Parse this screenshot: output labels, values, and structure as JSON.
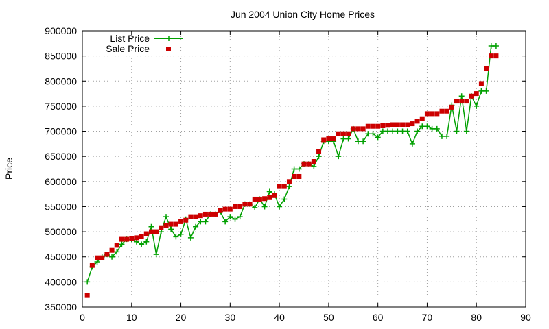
{
  "chart_data": {
    "type": "line",
    "title": "Jun 2004 Union City Home Prices",
    "xlabel": "",
    "ylabel": "Price",
    "xlim": [
      0,
      90
    ],
    "ylim": [
      350000,
      900000
    ],
    "xticks": [
      0,
      10,
      20,
      30,
      40,
      50,
      60,
      70,
      80,
      90
    ],
    "yticks": [
      350000,
      400000,
      450000,
      500000,
      550000,
      600000,
      650000,
      700000,
      750000,
      800000,
      850000,
      900000
    ],
    "grid": true,
    "legend": "top-left",
    "series": [
      {
        "name": "List Price",
        "style": "line-points",
        "color": "#00a000",
        "x": [
          1,
          2,
          3,
          4,
          5,
          6,
          7,
          8,
          9,
          10,
          11,
          12,
          13,
          14,
          15,
          16,
          17,
          18,
          19,
          20,
          21,
          22,
          23,
          24,
          25,
          26,
          27,
          28,
          29,
          30,
          31,
          32,
          33,
          34,
          35,
          36,
          37,
          38,
          39,
          40,
          41,
          42,
          43,
          44,
          45,
          46,
          47,
          48,
          49,
          50,
          51,
          52,
          53,
          54,
          55,
          56,
          57,
          58,
          59,
          60,
          61,
          62,
          63,
          64,
          65,
          66,
          67,
          68,
          69,
          70,
          71,
          72,
          73,
          74,
          75,
          76,
          77,
          78,
          79,
          80,
          81,
          82,
          83,
          84
        ],
        "values": [
          400000,
          430000,
          440000,
          450000,
          455000,
          450000,
          460000,
          475000,
          485000,
          485000,
          480000,
          475000,
          480000,
          510000,
          455000,
          500000,
          530000,
          505000,
          490000,
          495000,
          525000,
          488000,
          510000,
          520000,
          520000,
          535000,
          535000,
          540000,
          520000,
          530000,
          525000,
          530000,
          555000,
          555000,
          548000,
          565000,
          550000,
          580000,
          575000,
          550000,
          565000,
          590000,
          625000,
          625000,
          635000,
          635000,
          630000,
          650000,
          680000,
          680000,
          680000,
          650000,
          685000,
          685000,
          705000,
          680000,
          680000,
          695000,
          695000,
          688000,
          700000,
          700000,
          700000,
          700000,
          700000,
          700000,
          675000,
          700000,
          710000,
          710000,
          705000,
          705000,
          690000,
          690000,
          752000,
          700000,
          770000,
          700000,
          770000,
          750000,
          780000,
          780000,
          870000,
          870000
        ]
      },
      {
        "name": "Sale Price",
        "style": "points",
        "color": "#cc0000",
        "x": [
          1,
          2,
          3,
          4,
          5,
          6,
          7,
          8,
          9,
          10,
          11,
          12,
          13,
          14,
          15,
          16,
          17,
          18,
          19,
          20,
          21,
          22,
          23,
          24,
          25,
          26,
          27,
          28,
          29,
          30,
          31,
          32,
          33,
          34,
          35,
          36,
          37,
          38,
          39,
          40,
          41,
          42,
          43,
          44,
          45,
          46,
          47,
          48,
          49,
          50,
          51,
          52,
          53,
          54,
          55,
          56,
          57,
          58,
          59,
          60,
          61,
          62,
          63,
          64,
          65,
          66,
          67,
          68,
          69,
          70,
          71,
          72,
          73,
          74,
          75,
          76,
          77,
          78,
          79,
          80,
          81,
          82,
          83,
          84
        ],
        "values": [
          373000,
          433000,
          448000,
          448000,
          455000,
          463000,
          473000,
          485000,
          485000,
          486000,
          488000,
          490000,
          496000,
          500000,
          500000,
          508000,
          512000,
          515000,
          515000,
          520000,
          523000,
          530000,
          530000,
          532000,
          535000,
          535000,
          535000,
          542000,
          545000,
          545000,
          550000,
          550000,
          555000,
          555000,
          565000,
          565000,
          566000,
          568000,
          572000,
          590000,
          590000,
          600000,
          610000,
          610000,
          635000,
          635000,
          640000,
          660000,
          683000,
          685000,
          685000,
          695000,
          695000,
          695000,
          705000,
          705000,
          705000,
          710000,
          710000,
          710000,
          711000,
          712000,
          713000,
          713000,
          713000,
          713000,
          715000,
          720000,
          725000,
          735000,
          735000,
          735000,
          740000,
          740000,
          748000,
          760000,
          760000,
          760000,
          770000,
          775000,
          795000,
          825000,
          850000,
          850000
        ]
      }
    ]
  }
}
